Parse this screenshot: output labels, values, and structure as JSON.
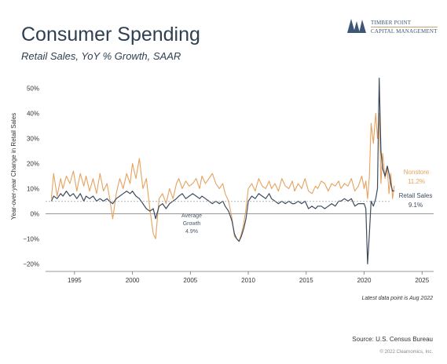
{
  "header": {
    "title": "Consumer Spending",
    "subtitle": "Retail Sales, YoY % Growth, SAAR"
  },
  "logo": {
    "line1": "TIMBER POINT",
    "line2": "CAPITAL MANAGEMENT"
  },
  "footer": {
    "latest": "Latest data point is Aug 2022",
    "source": "Source: U.S. Census Bureau",
    "copyright": "© 2022 Clearnomics, Inc."
  },
  "colors": {
    "nonstore": "#e6a25e",
    "retail": "#3d4b5e",
    "axis": "#777777",
    "average": "#9aa3ad"
  },
  "chart_data": {
    "type": "line",
    "title": "",
    "xlabel": "",
    "ylabel": "Year-over-year Change in Retail Sales",
    "xlim": [
      1992.5,
      2026
    ],
    "ylim": [
      -23,
      57
    ],
    "x_ticks": [
      1995,
      2000,
      2005,
      2010,
      2015,
      2020,
      2025
    ],
    "y_ticks": [
      -20,
      -10,
      0,
      10,
      20,
      30,
      40,
      50
    ],
    "y_tick_labels": [
      "−20%",
      "−10%",
      "0%",
      "10%",
      "20%",
      "30%",
      "40%",
      "50%"
    ],
    "grid": false,
    "average_line": {
      "value": 4.9,
      "label_lines": [
        "Average",
        "Growth",
        "4.9%"
      ]
    },
    "series": [
      {
        "name": "Nonstore",
        "end_label": "11.2%",
        "x": [
          1993.0,
          1993.2,
          1993.5,
          1993.8,
          1994.0,
          1994.3,
          1994.6,
          1994.9,
          1995.2,
          1995.5,
          1995.8,
          1996.0,
          1996.3,
          1996.6,
          1996.9,
          1997.2,
          1997.5,
          1997.8,
          1998.0,
          1998.3,
          1998.6,
          1998.9,
          1999.2,
          1999.5,
          1999.8,
          2000.0,
          2000.3,
          2000.6,
          2000.9,
          2001.2,
          2001.5,
          2001.8,
          2002.0,
          2002.3,
          2002.6,
          2002.9,
          2003.2,
          2003.5,
          2003.8,
          2004.0,
          2004.3,
          2004.6,
          2004.9,
          2005.2,
          2005.5,
          2005.8,
          2006.0,
          2006.3,
          2006.6,
          2006.9,
          2007.2,
          2007.5,
          2007.8,
          2008.0,
          2008.3,
          2008.6,
          2008.8,
          2009.0,
          2009.2,
          2009.4,
          2009.6,
          2009.8,
          2010.0,
          2010.3,
          2010.6,
          2010.9,
          2011.2,
          2011.5,
          2011.8,
          2012.0,
          2012.3,
          2012.6,
          2012.9,
          2013.2,
          2013.5,
          2013.8,
          2014.0,
          2014.3,
          2014.6,
          2014.9,
          2015.2,
          2015.5,
          2015.8,
          2016.0,
          2016.3,
          2016.6,
          2016.9,
          2017.2,
          2017.5,
          2017.8,
          2018.0,
          2018.3,
          2018.6,
          2018.9,
          2019.2,
          2019.5,
          2019.8,
          2020.0,
          2020.15,
          2020.3,
          2020.45,
          2020.6,
          2020.8,
          2021.0,
          2021.15,
          2021.3,
          2021.45,
          2021.6,
          2021.8,
          2022.0,
          2022.15,
          2022.3,
          2022.45,
          2022.6
        ],
        "values": [
          6,
          16,
          7,
          14,
          10,
          15,
          12,
          17,
          9,
          16,
          11,
          15,
          9,
          14,
          8,
          16,
          9,
          12,
          7,
          -2,
          8,
          14,
          10,
          16,
          12,
          20,
          14,
          22,
          10,
          14,
          2,
          -8,
          -10,
          6,
          8,
          4,
          10,
          6,
          12,
          14,
          10,
          13,
          11,
          12,
          14,
          10,
          15,
          12,
          14,
          16,
          12,
          10,
          12,
          8,
          5,
          -2,
          -9,
          -10,
          -11,
          -8,
          -4,
          2,
          10,
          12,
          9,
          14,
          11,
          10,
          13,
          10,
          12,
          9,
          14,
          11,
          10,
          13,
          9,
          12,
          10,
          14,
          9,
          8,
          11,
          10,
          13,
          12,
          9,
          12,
          11,
          13,
          10,
          12,
          11,
          14,
          9,
          11,
          15,
          10,
          13,
          6,
          15,
          36,
          28,
          40,
          30,
          40,
          12,
          24,
          14,
          18,
          8,
          16,
          6,
          11.2
        ]
      },
      {
        "name": "Retail Sales",
        "end_label": "9.1%",
        "x": [
          1993.0,
          1993.2,
          1993.5,
          1993.8,
          1994.0,
          1994.3,
          1994.6,
          1994.9,
          1995.2,
          1995.5,
          1995.8,
          1996.0,
          1996.3,
          1996.6,
          1996.9,
          1997.2,
          1997.5,
          1997.8,
          1998.0,
          1998.3,
          1998.6,
          1998.9,
          1999.2,
          1999.5,
          1999.8,
          2000.0,
          2000.3,
          2000.6,
          2000.9,
          2001.2,
          2001.5,
          2001.8,
          2002.0,
          2002.3,
          2002.6,
          2002.9,
          2003.2,
          2003.5,
          2003.8,
          2004.0,
          2004.3,
          2004.6,
          2004.9,
          2005.2,
          2005.5,
          2005.8,
          2006.0,
          2006.3,
          2006.6,
          2006.9,
          2007.2,
          2007.5,
          2007.8,
          2008.0,
          2008.3,
          2008.6,
          2008.8,
          2009.0,
          2009.2,
          2009.4,
          2009.6,
          2009.8,
          2010.0,
          2010.3,
          2010.6,
          2010.9,
          2011.2,
          2011.5,
          2011.8,
          2012.0,
          2012.3,
          2012.6,
          2012.9,
          2013.2,
          2013.5,
          2013.8,
          2014.0,
          2014.3,
          2014.6,
          2014.9,
          2015.2,
          2015.5,
          2015.8,
          2016.0,
          2016.3,
          2016.6,
          2016.9,
          2017.2,
          2017.5,
          2017.8,
          2018.0,
          2018.3,
          2018.6,
          2018.9,
          2019.2,
          2019.5,
          2019.8,
          2020.0,
          2020.15,
          2020.3,
          2020.45,
          2020.6,
          2020.8,
          2021.0,
          2021.15,
          2021.3,
          2021.45,
          2021.6,
          2021.8,
          2022.0,
          2022.15,
          2022.3,
          2022.45,
          2022.6
        ],
        "values": [
          5,
          7,
          6,
          8,
          7,
          9,
          7,
          8,
          6,
          8,
          5,
          7,
          6,
          7,
          5,
          6,
          5,
          6,
          5,
          4,
          6,
          7,
          8,
          9,
          8,
          9,
          7,
          6,
          4,
          2,
          1,
          2,
          -2,
          3,
          4,
          2,
          4,
          5,
          6,
          7,
          8,
          6,
          7,
          8,
          7,
          6,
          7,
          6,
          5,
          4,
          5,
          4,
          5,
          3,
          1,
          -3,
          -8,
          -10,
          -11,
          -9,
          -6,
          -2,
          5,
          7,
          6,
          8,
          7,
          6,
          8,
          6,
          5,
          4,
          5,
          4,
          5,
          4,
          4,
          5,
          4,
          5,
          2,
          3,
          2,
          3,
          3,
          2,
          3,
          4,
          3,
          5,
          5,
          6,
          5,
          6,
          3,
          4,
          4,
          4,
          2,
          -20,
          -8,
          5,
          3,
          6,
          10,
          54,
          25,
          18,
          15,
          19,
          16,
          12,
          9,
          9.1
        ]
      }
    ]
  }
}
